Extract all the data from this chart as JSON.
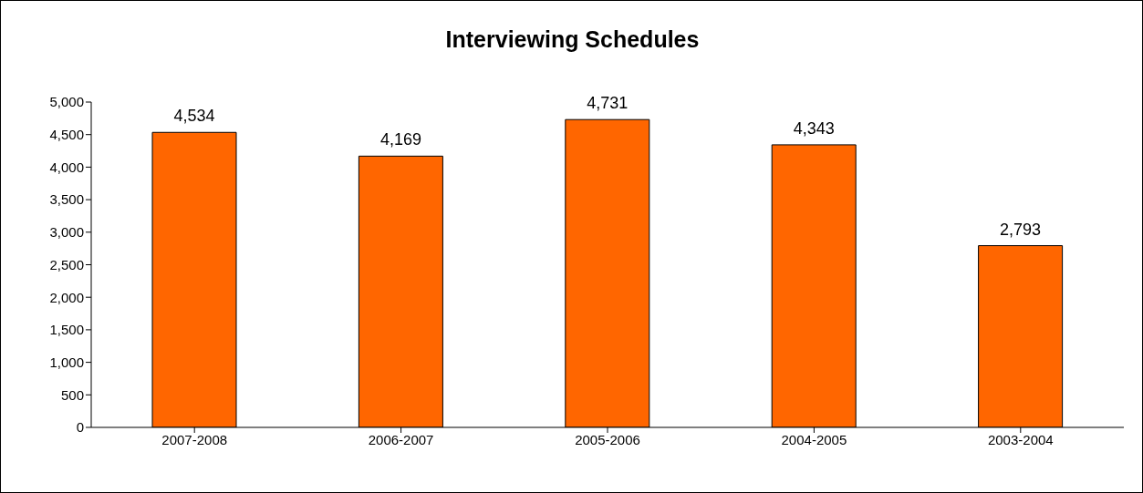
{
  "chart_data": {
    "type": "bar",
    "title": "Interviewing Schedules",
    "categories": [
      "2007-2008",
      "2006-2007",
      "2005-2006",
      "2004-2005",
      "2003-2004"
    ],
    "values": [
      4534,
      4169,
      4731,
      4343,
      2793
    ],
    "value_labels": [
      "4,534",
      "4,169",
      "4,731",
      "4,343",
      "2,793"
    ],
    "color": "#ff6600",
    "ylim": [
      0,
      5000
    ],
    "yticks": [
      0,
      500,
      {
        "value": 1000,
        "label": "1,000"
      },
      {
        "value": 1500,
        "label": "1,500"
      },
      {
        "value": 2000,
        "label": "2,000"
      },
      {
        "value": 2500,
        "label": "2,500"
      },
      {
        "value": 3000,
        "label": "3,000"
      },
      {
        "value": 3500,
        "label": "3,500"
      },
      {
        "value": 4000,
        "label": "4,000"
      },
      {
        "value": 4500,
        "label": "4,500"
      },
      {
        "value": 5000,
        "label": "5,000"
      }
    ]
  }
}
